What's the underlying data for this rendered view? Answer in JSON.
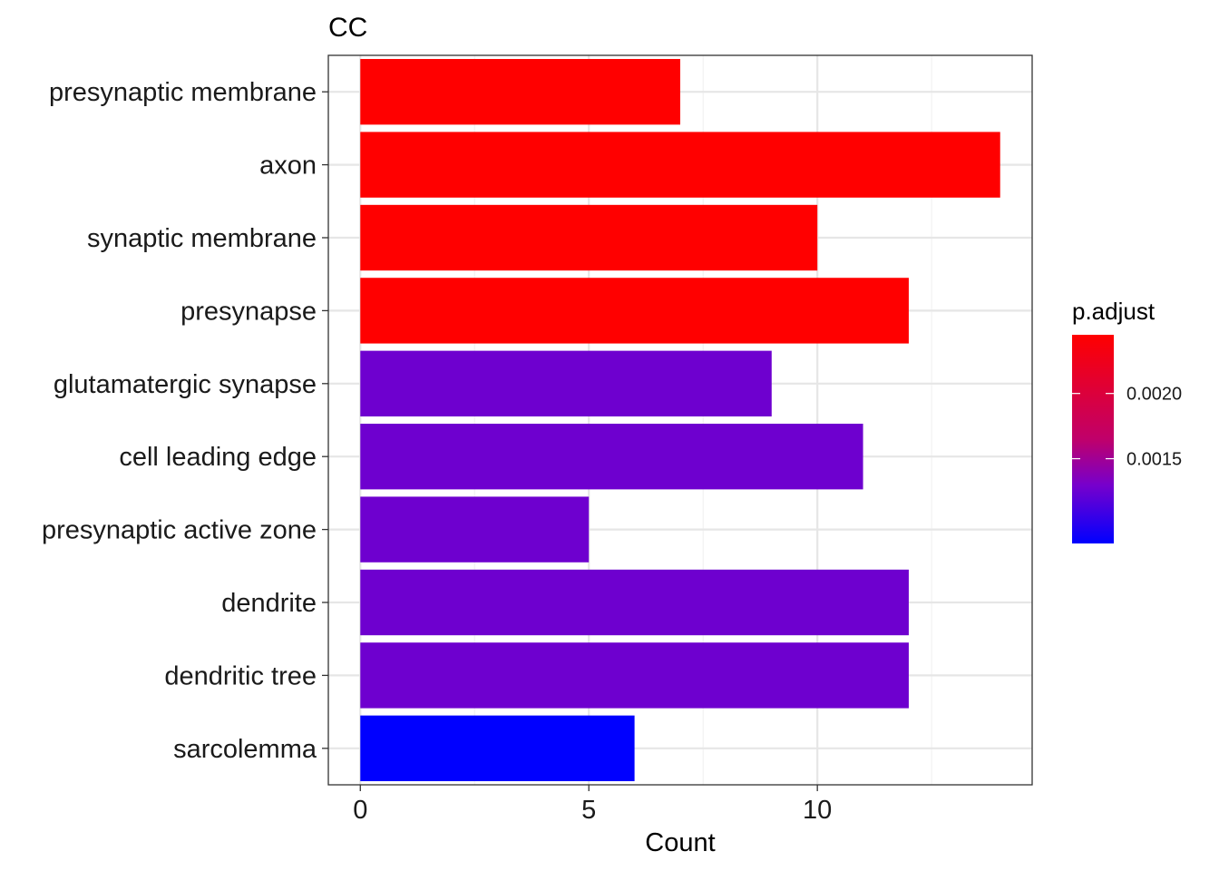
{
  "chart_data": {
    "type": "bar",
    "orientation": "horizontal",
    "title": "CC",
    "xlabel": "Count",
    "ylabel": "",
    "categories": [
      "presynaptic membrane",
      "axon",
      "synaptic membrane",
      "presynapse",
      "glutamatergic synapse",
      "cell leading edge",
      "presynaptic active zone",
      "dendrite",
      "dendritic tree",
      "sarcolemma"
    ],
    "values": [
      7,
      14,
      10,
      12,
      9,
      11,
      5,
      12,
      12,
      6
    ],
    "bar_colors": [
      "#FF0000",
      "#FF0000",
      "#FF0000",
      "#FF0000",
      "#6E00CF",
      "#6E00CF",
      "#6E00CF",
      "#6E00CF",
      "#6E00CF",
      "#0000FF"
    ],
    "xlim": [
      -0.7,
      14.7
    ],
    "x_ticks": [
      0,
      5,
      10
    ],
    "x_tick_labels": [
      "0",
      "5",
      "10"
    ],
    "x_minor_ticks": [
      2.5,
      7.5,
      12.5
    ],
    "grid": true,
    "legend": {
      "title": "p.adjust",
      "position": "right",
      "range": [
        0.00085,
        0.00245
      ],
      "reverse": true,
      "ticks": [
        0.0015,
        0.002
      ],
      "tick_labels": [
        "0.0015",
        "0.0020"
      ],
      "low_color": "#FF0000",
      "high_color": "#0000FF"
    }
  }
}
